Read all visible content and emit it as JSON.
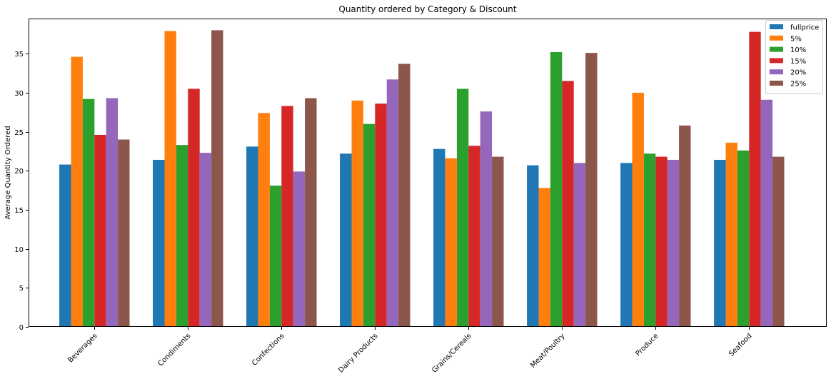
{
  "chart_data": {
    "type": "bar",
    "title": "Quantity ordered by Category & Discount",
    "xlabel": "",
    "ylabel": "Average Quantity Ordered",
    "categories": [
      "Beverages",
      "Condiments",
      "Confections",
      "Dairy Products",
      "Grains/Cereals",
      "Meat/Poultry",
      "Produce",
      "Seafood"
    ],
    "series": [
      {
        "name": "fullprice",
        "color": "#1f77b4",
        "values": [
          20.8,
          21.4,
          23.1,
          22.2,
          22.8,
          20.7,
          21.0,
          21.4
        ]
      },
      {
        "name": "5%",
        "color": "#ff7f0e",
        "values": [
          34.6,
          37.9,
          27.4,
          29.0,
          21.6,
          17.8,
          30.0,
          23.6
        ]
      },
      {
        "name": "10%",
        "color": "#2ca02c",
        "values": [
          29.2,
          23.3,
          18.1,
          26.0,
          30.5,
          35.2,
          22.2,
          22.6
        ]
      },
      {
        "name": "15%",
        "color": "#d62728",
        "values": [
          24.6,
          30.5,
          28.3,
          28.6,
          23.2,
          31.5,
          21.8,
          37.8
        ]
      },
      {
        "name": "20%",
        "color": "#9467bd",
        "values": [
          29.3,
          22.3,
          19.9,
          31.7,
          27.6,
          21.0,
          21.4,
          29.1
        ]
      },
      {
        "name": "25%",
        "color": "#8c564b",
        "values": [
          24.0,
          38.0,
          29.3,
          33.7,
          21.8,
          35.1,
          25.8,
          21.8
        ]
      }
    ],
    "ylim": [
      0,
      39.5
    ],
    "yticks": [
      0,
      5,
      10,
      15,
      20,
      25,
      30,
      35
    ],
    "grid": false,
    "legend_position": "top-right",
    "xtick_rotation": -45
  }
}
